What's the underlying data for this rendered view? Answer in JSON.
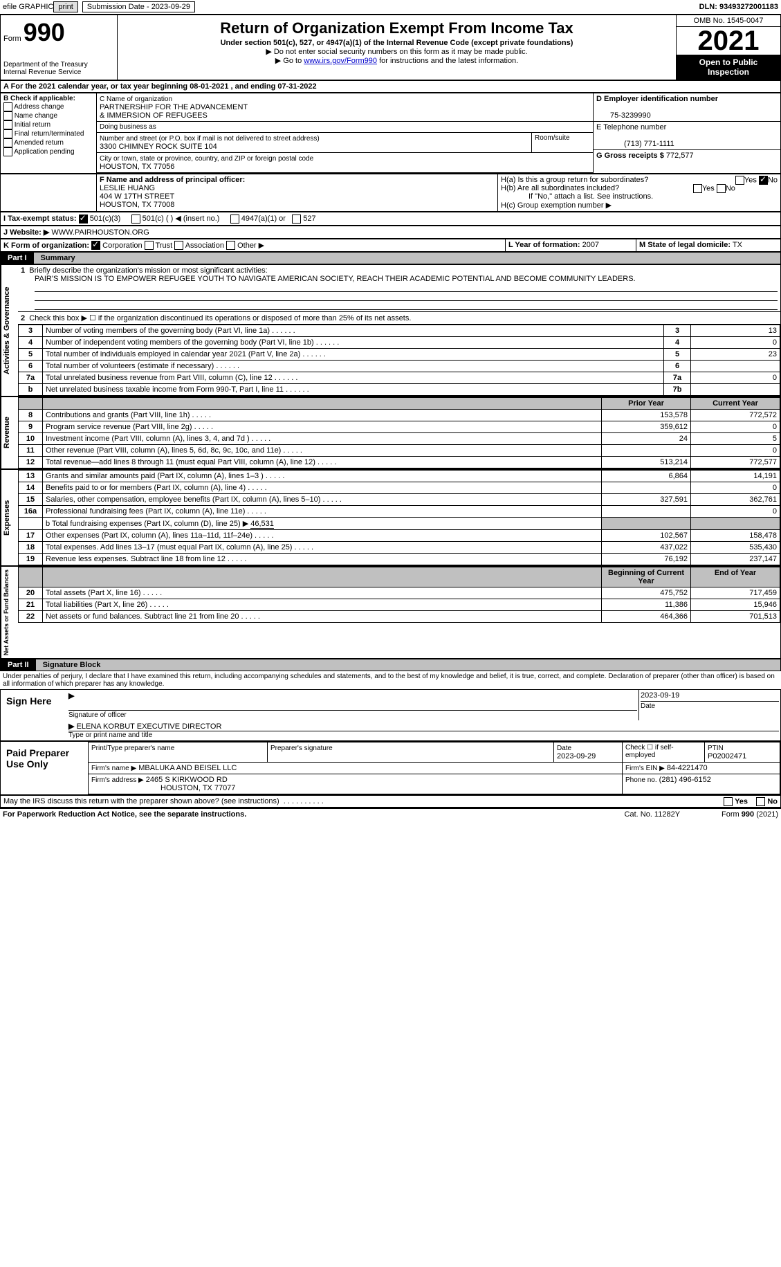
{
  "top": {
    "efile": "efile GRAPHIC",
    "print": "print",
    "sub_label": "Submission Date - 2023-09-29",
    "dln": "DLN: 93493272001183"
  },
  "header": {
    "form_word": "Form",
    "form_no": "990",
    "title": "Return of Organization Exempt From Income Tax",
    "subtitle": "Under section 501(c), 527, or 4947(a)(1) of the Internal Revenue Code (except private foundations)",
    "note1": "▶ Do not enter social security numbers on this form as it may be made public.",
    "note2_pre": "▶ Go to ",
    "note2_link": "www.irs.gov/Form990",
    "note2_post": " for instructions and the latest information.",
    "dept": "Department of the Treasury",
    "irs": "Internal Revenue Service",
    "omb": "OMB No. 1545-0047",
    "year": "2021",
    "open": "Open to Public Inspection"
  },
  "sectionA": "A For the 2021 calendar year, or tax year beginning 08-01-2021    , and ending 07-31-2022",
  "sectionB": {
    "header": "B Check if applicable:",
    "items": [
      "Address change",
      "Name change",
      "Initial return",
      "Final return/terminated",
      "Amended return",
      "Application pending"
    ]
  },
  "sectionC": {
    "name_label": "C Name of organization",
    "name1": "PARTNERSHIP FOR THE ADVANCEMENT",
    "name2": "& IMMERSION OF REFUGEES",
    "dba": "Doing business as",
    "addr_label": "Number and street (or P.O. box if mail is not delivered to street address)",
    "room": "Room/suite",
    "addr": "3300 CHIMNEY ROCK SUITE 104",
    "city_label": "City or town, state or province, country, and ZIP or foreign postal code",
    "city": "HOUSTON, TX  77056"
  },
  "sectionD": {
    "label": "D Employer identification number",
    "ein": "75-3239990",
    "tel_label": "E Telephone number",
    "tel": "(713) 771-1111",
    "gross_label": "G Gross receipts $",
    "gross": "772,577"
  },
  "sectionF": {
    "label": "F  Name and address of principal officer:",
    "name": "LESLIE HUANG",
    "addr1": "404 W 17TH STREET",
    "addr2": "HOUSTON, TX  77008"
  },
  "sectionH": {
    "ha": "H(a)  Is this a group return for subordinates?",
    "hb": "H(b)  Are all subordinates included?",
    "hb_note": "If \"No,\" attach a list. See instructions.",
    "hc": "H(c)  Group exemption number ▶",
    "yes": "Yes",
    "no": "No"
  },
  "statusI": {
    "label": "I  Tax-exempt status:",
    "o1": "501(c)(3)",
    "o2": "501(c) (   ) ◀ (insert no.)",
    "o3": "4947(a)(1) or",
    "o4": "527"
  },
  "sectionJ": {
    "label": "J  Website: ▶",
    "url": "WWW.PAIRHOUSTON.ORG"
  },
  "sectionK": {
    "label": "K Form of organization:",
    "opts": [
      "Corporation",
      "Trust",
      "Association",
      "Other ▶"
    ]
  },
  "sectionL": {
    "label": "L Year of formation:",
    "val": "2007"
  },
  "sectionM": {
    "label": "M State of legal domicile:",
    "val": "TX"
  },
  "part1": {
    "hdr": "Part I",
    "title": "Summary",
    "line1_label": "Briefly describe the organization's mission or most significant activities:",
    "line1_text": "PAIR'S MISSION IS TO EMPOWER REFUGEE YOUTH TO NAVIGATE AMERICAN SOCIETY, REACH THEIR ACADEMIC POTENTIAL AND BECOME COMMUNITY LEADERS.",
    "line2": "Check this box ▶ ☐ if the organization discontinued its operations or disposed of more than 25% of its net assets.",
    "rows_gov": [
      {
        "n": "3",
        "t": "Number of voting members of the governing body (Part VI, line 1a)",
        "box": "3",
        "v": "13"
      },
      {
        "n": "4",
        "t": "Number of independent voting members of the governing body (Part VI, line 1b)",
        "box": "4",
        "v": "0"
      },
      {
        "n": "5",
        "t": "Total number of individuals employed in calendar year 2021 (Part V, line 2a)",
        "box": "5",
        "v": "23"
      },
      {
        "n": "6",
        "t": "Total number of volunteers (estimate if necessary)",
        "box": "6",
        "v": ""
      },
      {
        "n": "7a",
        "t": "Total unrelated business revenue from Part VIII, column (C), line 12",
        "box": "7a",
        "v": "0"
      },
      {
        "n": "b",
        "t": "Net unrelated business taxable income from Form 990-T, Part I, line 11",
        "box": "7b",
        "v": ""
      }
    ],
    "col_prior": "Prior Year",
    "col_curr": "Current Year",
    "revenue": [
      {
        "n": "8",
        "t": "Contributions and grants (Part VIII, line 1h)",
        "p": "153,578",
        "c": "772,572"
      },
      {
        "n": "9",
        "t": "Program service revenue (Part VIII, line 2g)",
        "p": "359,612",
        "c": "0"
      },
      {
        "n": "10",
        "t": "Investment income (Part VIII, column (A), lines 3, 4, and 7d )",
        "p": "24",
        "c": "5"
      },
      {
        "n": "11",
        "t": "Other revenue (Part VIII, column (A), lines 5, 6d, 8c, 9c, 10c, and 11e)",
        "p": "",
        "c": "0"
      },
      {
        "n": "12",
        "t": "Total revenue—add lines 8 through 11 (must equal Part VIII, column (A), line 12)",
        "p": "513,214",
        "c": "772,577"
      }
    ],
    "expenses": [
      {
        "n": "13",
        "t": "Grants and similar amounts paid (Part IX, column (A), lines 1–3 )",
        "p": "6,864",
        "c": "14,191"
      },
      {
        "n": "14",
        "t": "Benefits paid to or for members (Part IX, column (A), line 4)",
        "p": "",
        "c": "0"
      },
      {
        "n": "15",
        "t": "Salaries, other compensation, employee benefits (Part IX, column (A), lines 5–10)",
        "p": "327,591",
        "c": "362,761"
      },
      {
        "n": "16a",
        "t": "Professional fundraising fees (Part IX, column (A), line 11e)",
        "p": "",
        "c": "0"
      }
    ],
    "line16b_label": "b  Total fundraising expenses (Part IX, column (D), line 25) ▶",
    "line16b_val": "46,531",
    "expenses2": [
      {
        "n": "17",
        "t": "Other expenses (Part IX, column (A), lines 11a–11d, 11f–24e)",
        "p": "102,567",
        "c": "158,478"
      },
      {
        "n": "18",
        "t": "Total expenses. Add lines 13–17 (must equal Part IX, column (A), line 25)",
        "p": "437,022",
        "c": "535,430"
      },
      {
        "n": "19",
        "t": "Revenue less expenses. Subtract line 18 from line 12",
        "p": "76,192",
        "c": "237,147"
      }
    ],
    "col_begin": "Beginning of Current Year",
    "col_end": "End of Year",
    "netassets": [
      {
        "n": "20",
        "t": "Total assets (Part X, line 16)",
        "p": "475,752",
        "c": "717,459"
      },
      {
        "n": "21",
        "t": "Total liabilities (Part X, line 26)",
        "p": "11,386",
        "c": "15,946"
      },
      {
        "n": "22",
        "t": "Net assets or fund balances. Subtract line 21 from line 20",
        "p": "464,366",
        "c": "701,513"
      }
    ],
    "vert_gov": "Activities & Governance",
    "vert_rev": "Revenue",
    "vert_exp": "Expenses",
    "vert_net": "Net Assets or Fund Balances"
  },
  "part2": {
    "hdr": "Part II",
    "title": "Signature Block",
    "decl": "Under penalties of perjury, I declare that I have examined this return, including accompanying schedules and statements, and to the best of my knowledge and belief, it is true, correct, and complete. Declaration of preparer (other than officer) is based on all information of which preparer has any knowledge.",
    "sign_here": "Sign Here",
    "sig_officer": "Signature of officer",
    "date": "Date",
    "sig_date": "2023-09-19",
    "name_title": "ELENA KORBUT  EXECUTIVE DIRECTOR",
    "type_name": "Type or print name and title",
    "paid": "Paid Preparer Use Only",
    "prep_name_label": "Print/Type preparer's name",
    "prep_sig_label": "Preparer's signature",
    "prep_date_label": "Date",
    "prep_date": "2023-09-29",
    "check_self": "Check ☐ if self-employed",
    "ptin_label": "PTIN",
    "ptin": "P02002471",
    "firm_name_label": "Firm's name    ▶",
    "firm_name": "MBALUKA AND BEISEL LLC",
    "firm_ein_label": "Firm's EIN ▶",
    "firm_ein": "84-4221470",
    "firm_addr_label": "Firm's address ▶",
    "firm_addr1": "2465 S KIRKWOOD RD",
    "firm_addr2": "HOUSTON, TX  77077",
    "phone_label": "Phone no.",
    "phone": "(281) 496-6152",
    "may_irs": "May the IRS discuss this return with the preparer shown above? (see instructions)",
    "yes": "Yes",
    "no": "No"
  },
  "footer": {
    "left": "For Paperwork Reduction Act Notice, see the separate instructions.",
    "mid": "Cat. No. 11282Y",
    "right": "Form 990 (2021)"
  }
}
